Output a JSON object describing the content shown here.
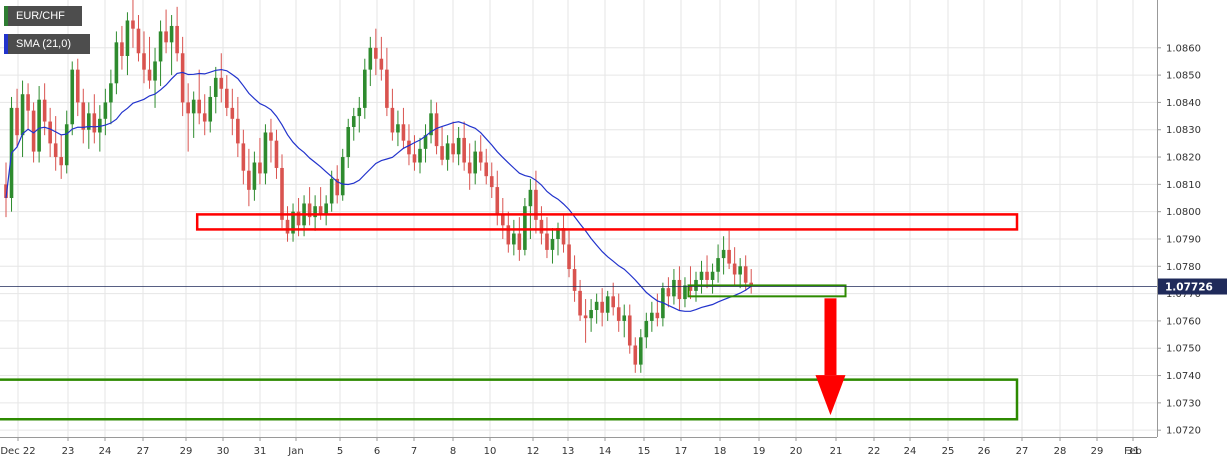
{
  "chart_data": {
    "type": "candlestick",
    "symbol": "EUR/CHF",
    "indicator": "SMA (21,0)",
    "last_price": "1.07726",
    "colors": {
      "up": "#2e8b2e",
      "down": "#d9534f",
      "sma": "#2233cc",
      "resistance_zone": "#ff0000",
      "support_zone": "#2d8a00",
      "arrow": "#ff0000",
      "price_line": "#1f2a5a",
      "price_tag": "#1f2a5a",
      "legend_sma_swatch": "#2233cc",
      "legend_symbol_swatch": "#2e7d32"
    },
    "y_axis": {
      "range": [
        1.07175,
        1.08775
      ],
      "ticks": [
        "1.0720",
        "1.0730",
        "1.0740",
        "1.0750",
        "1.0760",
        "1.0770",
        "1.0780",
        "1.0790",
        "1.0800",
        "1.0810",
        "1.0820",
        "1.0830",
        "1.0840",
        "1.0850",
        "1.0860"
      ]
    },
    "x_axis": {
      "labels": [
        "Dec 22",
        "23",
        "24",
        "27",
        "29",
        "30",
        "31",
        "Jan",
        "5",
        "6",
        "7",
        "8",
        "10",
        "12",
        "13",
        "14",
        "15",
        "17",
        "18",
        "19",
        "20",
        "21",
        "22",
        "24",
        "25",
        "26",
        "27",
        "28",
        "29",
        "31",
        "Feb"
      ]
    },
    "zones": [
      {
        "type": "resistance",
        "low": 1.07935,
        "high": 1.0799,
        "from_bar": 35,
        "to": "Jan 28"
      },
      {
        "type": "consolidation",
        "low": 1.0769,
        "high": 1.0773,
        "from_bar": 124,
        "to_bar": 151
      },
      {
        "type": "support",
        "low": 1.0724,
        "high": 1.07385,
        "from_bar": 0,
        "to": "Jan 28"
      }
    ],
    "arrow": {
      "from": 1.0769,
      "to": 1.07255,
      "at_bar": 149
    },
    "ohlc": [
      [
        1.081,
        1.0818,
        1.0798,
        1.0805
      ],
      [
        1.0805,
        1.0842,
        1.08,
        1.0838
      ],
      [
        1.0838,
        1.0845,
        1.0824,
        1.0828
      ],
      [
        1.0828,
        1.0848,
        1.082,
        1.0843
      ],
      [
        1.0843,
        1.0847,
        1.083,
        1.0837
      ],
      [
        1.0837,
        1.084,
        1.0818,
        1.0822
      ],
      [
        1.0822,
        1.0846,
        1.0818,
        1.0841
      ],
      [
        1.0841,
        1.0847,
        1.0828,
        1.0833
      ],
      [
        1.0833,
        1.0838,
        1.082,
        1.0825
      ],
      [
        1.0825,
        1.0835,
        1.0815,
        1.082
      ],
      [
        1.082,
        1.0828,
        1.0812,
        1.0817
      ],
      [
        1.0817,
        1.0837,
        1.0814,
        1.0832
      ],
      [
        1.0832,
        1.0855,
        1.0828,
        1.0852
      ],
      [
        1.0852,
        1.0856,
        1.0835,
        1.084
      ],
      [
        1.084,
        1.0845,
        1.0825,
        1.083
      ],
      [
        1.083,
        1.084,
        1.0823,
        1.0836
      ],
      [
        1.0836,
        1.0843,
        1.0825,
        1.0829
      ],
      [
        1.0829,
        1.0839,
        1.0822,
        1.0834
      ],
      [
        1.0834,
        1.0845,
        1.0828,
        1.084
      ],
      [
        1.084,
        1.0852,
        1.0832,
        1.0847
      ],
      [
        1.0847,
        1.0866,
        1.0843,
        1.0862
      ],
      [
        1.0862,
        1.0868,
        1.0852,
        1.0857
      ],
      [
        1.0857,
        1.0873,
        1.085,
        1.087
      ],
      [
        1.087,
        1.0878,
        1.086,
        1.0867
      ],
      [
        1.0867,
        1.0872,
        1.0855,
        1.0858
      ],
      [
        1.0858,
        1.0866,
        1.0847,
        1.0852
      ],
      [
        1.0852,
        1.0864,
        1.0845,
        1.0848
      ],
      [
        1.0848,
        1.086,
        1.0838,
        1.0855
      ],
      [
        1.0855,
        1.087,
        1.0846,
        1.0866
      ],
      [
        1.0866,
        1.0874,
        1.0858,
        1.0862
      ],
      [
        1.0862,
        1.0872,
        1.085,
        1.0868
      ],
      [
        1.0868,
        1.0875,
        1.0855,
        1.0858
      ],
      [
        1.0858,
        1.0864,
        1.0835,
        1.084
      ],
      [
        1.084,
        1.0847,
        1.0822,
        1.0836
      ],
      [
        1.0836,
        1.0844,
        1.0827,
        1.0841
      ],
      [
        1.0841,
        1.0852,
        1.0832,
        1.0836
      ],
      [
        1.0836,
        1.0843,
        1.0828,
        1.0833
      ],
      [
        1.0833,
        1.0846,
        1.0829,
        1.0842
      ],
      [
        1.0842,
        1.0853,
        1.0836,
        1.0849
      ],
      [
        1.0849,
        1.0858,
        1.084,
        1.0845
      ],
      [
        1.0845,
        1.085,
        1.0835,
        1.0838
      ],
      [
        1.0838,
        1.0845,
        1.0828,
        1.0834
      ],
      [
        1.0834,
        1.0842,
        1.082,
        1.0825
      ],
      [
        1.0825,
        1.083,
        1.081,
        1.0815
      ],
      [
        1.0815,
        1.0823,
        1.0802,
        1.0808
      ],
      [
        1.0808,
        1.0822,
        1.0804,
        1.0818
      ],
      [
        1.0818,
        1.0827,
        1.081,
        1.0814
      ],
      [
        1.0814,
        1.0832,
        1.081,
        1.0829
      ],
      [
        1.0829,
        1.0834,
        1.0818,
        1.0826
      ],
      [
        1.0826,
        1.083,
        1.0812,
        1.0816
      ],
      [
        1.0816,
        1.0821,
        1.0794,
        1.0797
      ],
      [
        1.0797,
        1.0802,
        1.0789,
        1.0792
      ],
      [
        1.0792,
        1.0803,
        1.0789,
        1.08
      ],
      [
        1.08,
        1.0805,
        1.0791,
        1.0795
      ],
      [
        1.0795,
        1.0806,
        1.0791,
        1.0803
      ],
      [
        1.0803,
        1.0809,
        1.0795,
        1.0798
      ],
      [
        1.0798,
        1.0806,
        1.0793,
        1.0802
      ],
      [
        1.0802,
        1.0809,
        1.0797,
        1.0799
      ],
      [
        1.0799,
        1.0806,
        1.0795,
        1.0803
      ],
      [
        1.0803,
        1.0815,
        1.08,
        1.0812
      ],
      [
        1.0812,
        1.0817,
        1.0803,
        1.0806
      ],
      [
        1.0806,
        1.0823,
        1.0804,
        1.082
      ],
      [
        1.082,
        1.0834,
        1.0816,
        1.0831
      ],
      [
        1.0831,
        1.0838,
        1.0826,
        1.0835
      ],
      [
        1.0835,
        1.0842,
        1.0829,
        1.0838
      ],
      [
        1.0838,
        1.0856,
        1.0834,
        1.0852
      ],
      [
        1.0852,
        1.0864,
        1.0846,
        1.086
      ],
      [
        1.086,
        1.0867,
        1.085,
        1.0856
      ],
      [
        1.0856,
        1.0864,
        1.0848,
        1.0852
      ],
      [
        1.0852,
        1.086,
        1.0835,
        1.0838
      ],
      [
        1.0838,
        1.0845,
        1.0826,
        1.0829
      ],
      [
        1.0829,
        1.0837,
        1.0824,
        1.0832
      ],
      [
        1.0832,
        1.0838,
        1.0823,
        1.0826
      ],
      [
        1.0826,
        1.0832,
        1.0817,
        1.0821
      ],
      [
        1.0821,
        1.0828,
        1.0815,
        1.0818
      ],
      [
        1.0818,
        1.0827,
        1.0814,
        1.0823
      ],
      [
        1.0823,
        1.0832,
        1.0818,
        1.0828
      ],
      [
        1.0828,
        1.0841,
        1.0825,
        1.0836
      ],
      [
        1.0836,
        1.084,
        1.0821,
        1.0824
      ],
      [
        1.0824,
        1.0831,
        1.0817,
        1.0819
      ],
      [
        1.0819,
        1.0828,
        1.0815,
        1.0825
      ],
      [
        1.0825,
        1.0833,
        1.0818,
        1.0821
      ],
      [
        1.0821,
        1.0831,
        1.0817,
        1.0827
      ],
      [
        1.0827,
        1.0833,
        1.0815,
        1.0818
      ],
      [
        1.0818,
        1.0825,
        1.0808,
        1.0814
      ],
      [
        1.0814,
        1.0826,
        1.081,
        1.0822
      ],
      [
        1.0822,
        1.0828,
        1.0815,
        1.0818
      ],
      [
        1.0818,
        1.0823,
        1.081,
        1.0813
      ],
      [
        1.0813,
        1.0818,
        1.0805,
        1.0809
      ],
      [
        1.0809,
        1.0815,
        1.0795,
        1.0799
      ],
      [
        1.0799,
        1.0805,
        1.079,
        1.0795
      ],
      [
        1.0795,
        1.08,
        1.0785,
        1.0788
      ],
      [
        1.0788,
        1.0797,
        1.0784,
        1.0792
      ],
      [
        1.0792,
        1.0798,
        1.0782,
        1.0786
      ],
      [
        1.0786,
        1.0805,
        1.0784,
        1.0802
      ],
      [
        1.0802,
        1.0812,
        1.079,
        1.0808
      ],
      [
        1.0808,
        1.0815,
        1.0792,
        1.0797
      ],
      [
        1.0797,
        1.0802,
        1.0788,
        1.0792
      ],
      [
        1.0792,
        1.0798,
        1.0783,
        1.0786
      ],
      [
        1.0786,
        1.0794,
        1.0781,
        1.079
      ],
      [
        1.079,
        1.0796,
        1.0784,
        1.0794
      ],
      [
        1.0794,
        1.0799,
        1.0785,
        1.0788
      ],
      [
        1.0788,
        1.0793,
        1.0776,
        1.0779
      ],
      [
        1.0779,
        1.0784,
        1.0767,
        1.0771
      ],
      [
        1.0771,
        1.0775,
        1.076,
        1.0762
      ],
      [
        1.0762,
        1.0768,
        1.0752,
        1.0761
      ],
      [
        1.0761,
        1.0768,
        1.0756,
        1.0764
      ],
      [
        1.0764,
        1.077,
        1.0759,
        1.0767
      ],
      [
        1.0767,
        1.0772,
        1.0758,
        1.0763
      ],
      [
        1.0763,
        1.0771,
        1.076,
        1.0769
      ],
      [
        1.0769,
        1.0774,
        1.0762,
        1.0765
      ],
      [
        1.0765,
        1.077,
        1.0756,
        1.076
      ],
      [
        1.076,
        1.0766,
        1.0754,
        1.0762
      ],
      [
        1.0762,
        1.0766,
        1.0748,
        1.0751
      ],
      [
        1.0751,
        1.0754,
        1.0741,
        1.0744
      ],
      [
        1.0744,
        1.0757,
        1.0741,
        1.0754
      ],
      [
        1.0754,
        1.0763,
        1.075,
        1.076
      ],
      [
        1.076,
        1.0767,
        1.0756,
        1.0763
      ],
      [
        1.0763,
        1.077,
        1.0758,
        1.0761
      ],
      [
        1.0761,
        1.0774,
        1.0758,
        1.0772
      ],
      [
        1.0772,
        1.0776,
        1.0765,
        1.0769
      ],
      [
        1.0769,
        1.0779,
        1.0766,
        1.0775
      ],
      [
        1.0775,
        1.078,
        1.0764,
        1.0768
      ],
      [
        1.0768,
        1.0776,
        1.0765,
        1.0773
      ],
      [
        1.0773,
        1.078,
        1.0768,
        1.0771
      ],
      [
        1.0771,
        1.0778,
        1.0767,
        1.0775
      ],
      [
        1.0775,
        1.0782,
        1.077,
        1.0778
      ],
      [
        1.0778,
        1.0784,
        1.0772,
        1.0775
      ],
      [
        1.0775,
        1.0781,
        1.077,
        1.0778
      ],
      [
        1.0778,
        1.0788,
        1.0774,
        1.0783
      ],
      [
        1.0783,
        1.0791,
        1.0777,
        1.0786
      ],
      [
        1.0786,
        1.0793,
        1.0779,
        1.0781
      ],
      [
        1.0781,
        1.0787,
        1.0773,
        1.0777
      ],
      [
        1.0777,
        1.0783,
        1.0772,
        1.078
      ],
      [
        1.078,
        1.0784,
        1.0771,
        1.0774
      ],
      [
        1.0774,
        1.0779,
        1.077,
        1.0773
      ]
    ]
  }
}
